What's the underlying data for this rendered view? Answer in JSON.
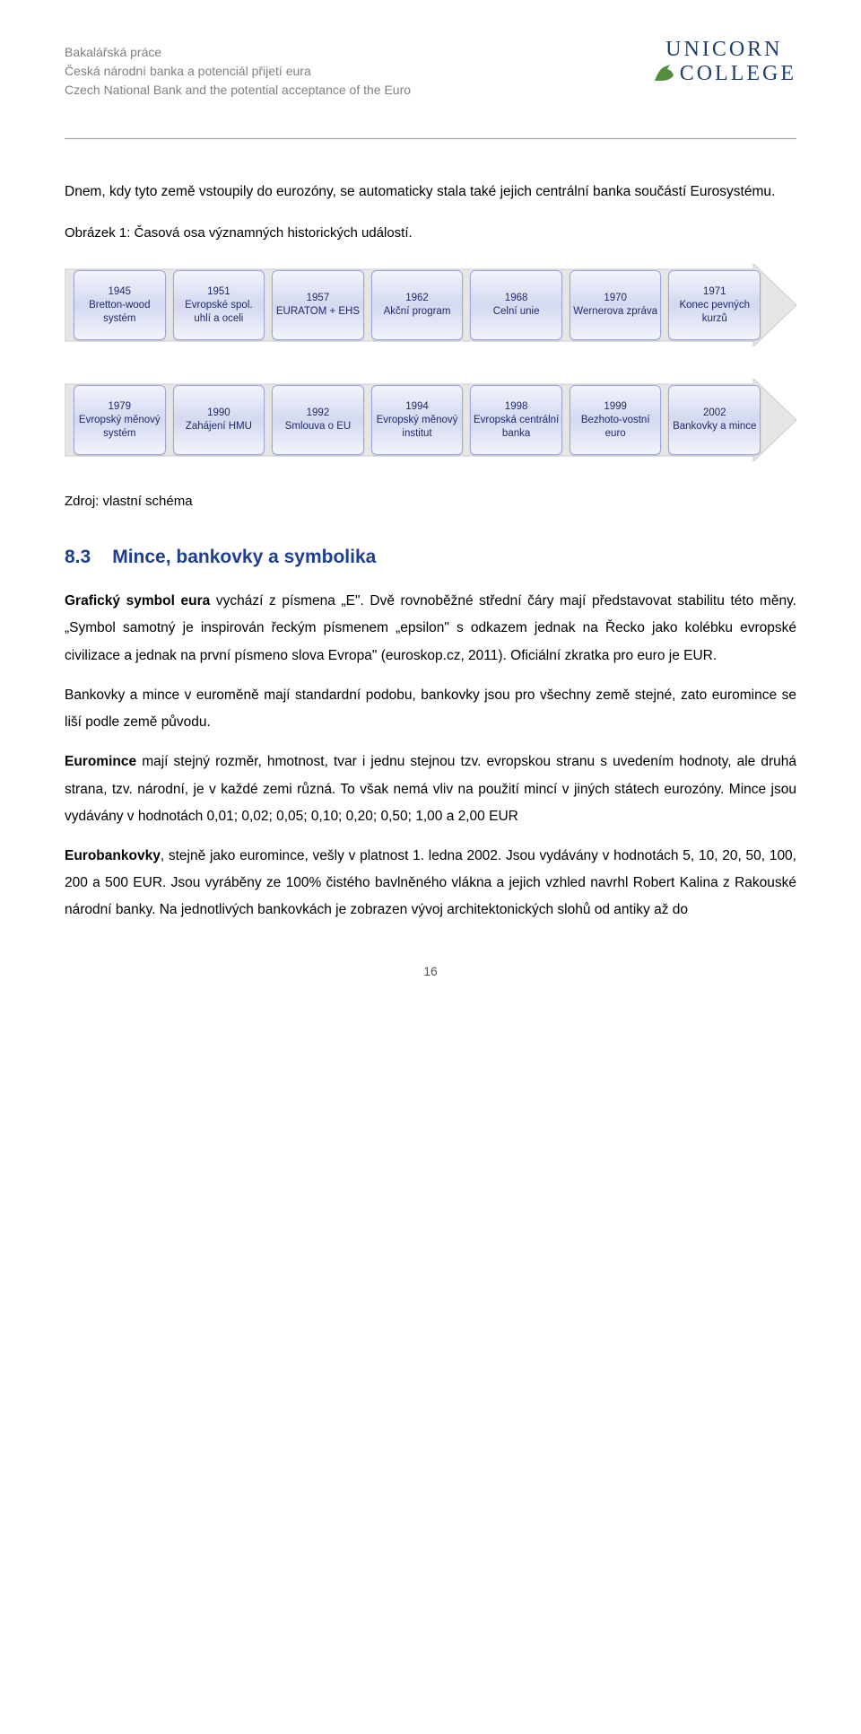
{
  "header": {
    "line1": "Bakalářská práce",
    "line2": "Česká národní banka a potenciál přijetí eura",
    "line3": "Czech National Bank and the potential acceptance of the Euro",
    "logo_line1": "UNICORN",
    "logo_line2": "COLLEGE",
    "logo_color": "#1f3f6e",
    "icon_color": "#518e3e"
  },
  "intro": {
    "p1": "Dnem, kdy tyto země vstoupily do eurozóny, se automaticky stala také jejich centrální banka součástí Eurosystému."
  },
  "figure": {
    "caption": "Obrázek 1: Časová osa významných historických událostí.",
    "source": "Zdroj: vlastní schéma",
    "arrow_fill": "#e6e6e6",
    "arrow_stroke": "#cccccc",
    "box_bg_top": "#f2f3fb",
    "box_bg_mid": "#d4d9f0",
    "box_border": "#9ca6d9",
    "box_text_color": "#1e2a6e",
    "row1": [
      {
        "year": "1945",
        "label": "Bretton-wood systém"
      },
      {
        "year": "1951",
        "label": "Evropské spol. uhlí a oceli"
      },
      {
        "year": "1957",
        "label": "EURATOM + EHS"
      },
      {
        "year": "1962",
        "label": "Akční program"
      },
      {
        "year": "1968",
        "label": "Celní unie"
      },
      {
        "year": "1970",
        "label": "Wernerova zpráva"
      },
      {
        "year": "1971",
        "label": "Konec pevných kurzů"
      }
    ],
    "row2": [
      {
        "year": "1979",
        "label": "Evropský měnový systém"
      },
      {
        "year": "1990",
        "label": "Zahájení HMU"
      },
      {
        "year": "1992",
        "label": "Smlouva o EU"
      },
      {
        "year": "1994",
        "label": "Evropský měnový institut"
      },
      {
        "year": "1998",
        "label": "Evropská centrální banka"
      },
      {
        "year": "1999",
        "label": "Bezhoto-vostní euro"
      },
      {
        "year": "2002",
        "label": "Bankovky a mince"
      }
    ]
  },
  "section": {
    "num": "8.3",
    "title": "Mince, bankovky a symbolika",
    "heading_color": "#1f3f8e",
    "p1": "Grafický symbol eura vychází z písmena „E\". Dvě rovnoběžné střední čáry mají představovat stabilitu této měny. „Symbol samotný je inspirován řeckým písmenem „epsilon\" s odkazem jednak na Řecko jako kolébku evropské civilizace a jednak na první písmeno slova Evropa\" (euroskop.cz, 2011). Oficiální zkratka pro euro je EUR.",
    "p2": "Bankovky a mince v euroměně mají standardní podobu, bankovky jsou pro všechny země stejné, zato euromince se liší podle země původu.",
    "p3": "Euromince mají stejný rozměr, hmotnost, tvar i jednu stejnou tzv. evropskou stranu s uvedením hodnoty, ale druhá strana, tzv. národní, je v každé zemi různá. To však nemá vliv na použití mincí v jiných státech eurozóny. Mince jsou vydávány v hodnotách 0,01; 0,02; 0,05; 0,10; 0,20; 0,50; 1,00 a 2,00 EUR",
    "p4": "Eurobankovky, stejně jako euromince, vešly v platnost 1. ledna 2002. Jsou vydávány v hodnotách 5, 10, 20, 50, 100, 200 a 500 EUR. Jsou vyráběny ze 100% čistého bavlněného vlákna a jejich vzhled navrhl Robert Kalina z Rakouské národní banky. Na jednotlivých bankovkách je zobrazen vývoj architektonických slohů od antiky až do"
  },
  "page_number": "16"
}
